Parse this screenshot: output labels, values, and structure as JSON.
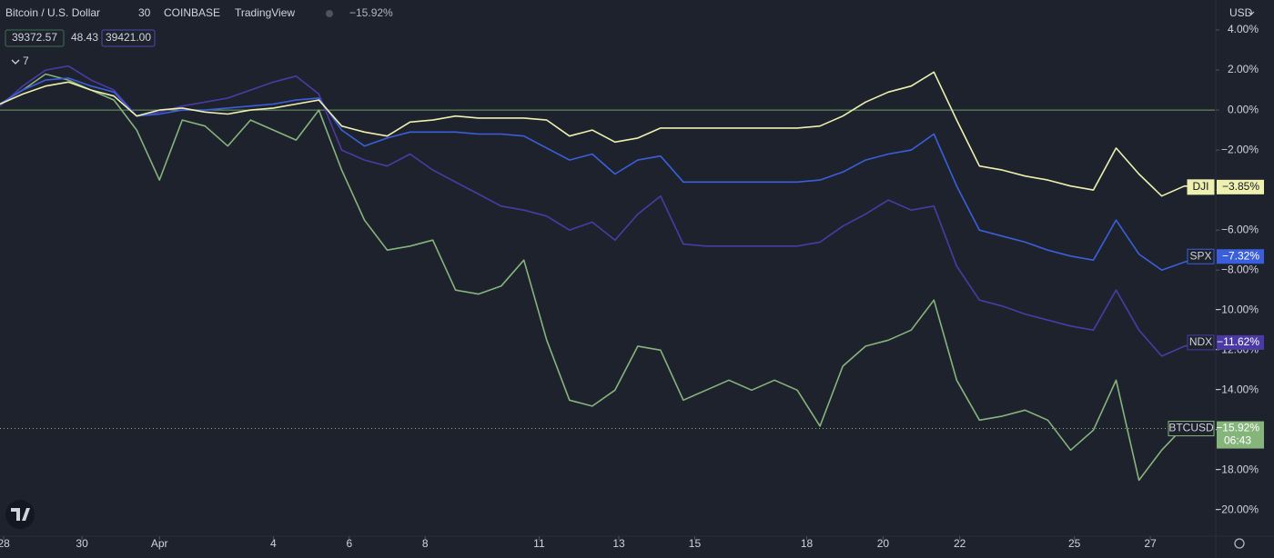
{
  "header": {
    "symbol": "Bitcoin / U.S. Dollar",
    "interval": "30",
    "exchange": "COINBASE",
    "source": "TradingView",
    "change": "−15.92%",
    "bid": "39372.57",
    "spread": "48.43",
    "ask": "39421.00",
    "indicators": "7",
    "currency": "USD"
  },
  "chart_data": {
    "type": "line",
    "grid": false,
    "x": [
      0,
      6,
      12,
      18,
      24,
      30,
      36,
      42,
      48,
      54,
      60,
      66,
      72,
      78,
      84,
      90,
      96,
      102,
      108,
      114,
      120,
      126,
      132,
      138,
      144,
      150,
      156,
      162,
      168,
      174,
      180,
      186,
      192,
      198,
      204,
      210,
      216,
      222,
      228,
      234,
      240,
      246,
      252,
      258,
      264,
      270,
      276,
      282,
      288,
      294,
      300,
      306,
      312,
      318
    ],
    "xlim": [
      0,
      320
    ],
    "xticks": [
      {
        "value": 1,
        "label": "28"
      },
      {
        "value": 21.6,
        "label": "30"
      },
      {
        "value": 42,
        "label": "Apr"
      },
      {
        "value": 72,
        "label": "4"
      },
      {
        "value": 92,
        "label": "6"
      },
      {
        "value": 112,
        "label": "8"
      },
      {
        "value": 142,
        "label": "11"
      },
      {
        "value": 163,
        "label": "13"
      },
      {
        "value": 183,
        "label": "15"
      },
      {
        "value": 212.5,
        "label": "18"
      },
      {
        "value": 232.6,
        "label": "20"
      },
      {
        "value": 252.8,
        "label": "22"
      },
      {
        "value": 283,
        "label": "25"
      },
      {
        "value": 303,
        "label": "27"
      }
    ],
    "ylim": [
      -21.3,
      5.5
    ],
    "yticks": [
      {
        "value": 4,
        "label": "4.00%"
      },
      {
        "value": 2,
        "label": "2.00%"
      },
      {
        "value": 0,
        "label": "0.00%"
      },
      {
        "value": -2,
        "label": "−2.00%"
      },
      {
        "value": -4,
        "label": "−4.00%"
      },
      {
        "value": -6,
        "label": "−6.00%"
      },
      {
        "value": -8,
        "label": "−8.00%"
      },
      {
        "value": -10,
        "label": "−10.00%"
      },
      {
        "value": -12,
        "label": "−12.00%"
      },
      {
        "value": -14,
        "label": "−14.00%"
      },
      {
        "value": -16,
        "label": "−16.00%"
      },
      {
        "value": -18,
        "label": "−18.00%"
      },
      {
        "value": -20,
        "label": "−20.00%"
      }
    ],
    "series": [
      {
        "name": "BTCUSD",
        "color": "#86b57c",
        "end_label": "−15.92%",
        "countdown": "06:43",
        "values": [
          0.3,
          1.0,
          1.8,
          1.5,
          1.0,
          0.5,
          -1.0,
          -3.5,
          -0.5,
          -0.8,
          -1.8,
          -0.5,
          -1.0,
          -1.5,
          0.0,
          -3.0,
          -5.5,
          -7.0,
          -6.8,
          -6.5,
          -9.0,
          -9.2,
          -8.8,
          -7.5,
          -11.5,
          -14.5,
          -14.8,
          -14.0,
          -11.8,
          -12.0,
          -14.5,
          -14.0,
          -13.5,
          -14.0,
          -13.5,
          -14.0,
          -15.8,
          -12.8,
          -11.8,
          -11.5,
          -11.0,
          -9.5,
          -13.5,
          -15.5,
          -15.3,
          -15.0,
          -15.5,
          -17.0,
          -16.0,
          -13.5,
          -18.5,
          -17.0,
          -15.8,
          -15.92
        ]
      },
      {
        "name": "NDX",
        "color": "#4b3aa6",
        "end_label": "−11.62%",
        "values": [
          0.2,
          1.2,
          2.0,
          2.2,
          1.5,
          1.0,
          -0.3,
          -0.1,
          0.2,
          0.4,
          0.6,
          1.0,
          1.4,
          1.7,
          0.8,
          -2.0,
          -2.5,
          -2.8,
          -2.2,
          -3.0,
          -3.6,
          -4.2,
          -4.8,
          -5.0,
          -5.3,
          -6.0,
          -5.6,
          -6.5,
          -5.2,
          -4.3,
          -6.7,
          -6.8,
          -6.8,
          -6.8,
          -6.8,
          -6.8,
          -6.6,
          -5.8,
          -5.2,
          -4.5,
          -5.0,
          -4.8,
          -7.8,
          -9.5,
          -9.8,
          -10.2,
          -10.5,
          -10.8,
          -11.0,
          -9.0,
          -11.0,
          -12.3,
          -11.8,
          -11.62
        ]
      },
      {
        "name": "SPX",
        "color": "#3b5fdb",
        "end_label": "−7.32%",
        "values": [
          0.3,
          1.0,
          1.5,
          1.6,
          1.2,
          0.9,
          -0.3,
          -0.2,
          0.0,
          0.0,
          0.1,
          0.2,
          0.3,
          0.5,
          0.6,
          -1.0,
          -1.8,
          -1.4,
          -1.1,
          -1.1,
          -1.1,
          -1.2,
          -1.2,
          -1.3,
          -1.9,
          -2.5,
          -2.2,
          -3.2,
          -2.5,
          -2.3,
          -3.6,
          -3.6,
          -3.6,
          -3.6,
          -3.6,
          -3.6,
          -3.5,
          -3.1,
          -2.5,
          -2.2,
          -2.0,
          -1.2,
          -3.8,
          -6.0,
          -6.3,
          -6.6,
          -7.0,
          -7.3,
          -7.5,
          -5.5,
          -7.2,
          -8.0,
          -7.6,
          -7.32
        ]
      },
      {
        "name": "DJI",
        "color": "#eef0b0",
        "end_label": "−3.85%",
        "values": [
          0.3,
          0.8,
          1.2,
          1.4,
          1.0,
          0.7,
          -0.3,
          0.0,
          0.1,
          -0.1,
          -0.2,
          0.0,
          0.1,
          0.3,
          0.5,
          -0.8,
          -1.1,
          -1.3,
          -0.6,
          -0.5,
          -0.3,
          -0.4,
          -0.4,
          -0.4,
          -0.5,
          -1.3,
          -1.0,
          -1.6,
          -1.4,
          -0.9,
          -0.9,
          -0.9,
          -0.9,
          -0.9,
          -0.9,
          -0.9,
          -0.8,
          -0.3,
          0.4,
          0.9,
          1.2,
          1.9,
          -0.5,
          -2.8,
          -3.0,
          -3.3,
          -3.5,
          -3.8,
          -4.0,
          -1.9,
          -3.2,
          -4.3,
          -3.8,
          -3.85
        ]
      }
    ]
  }
}
